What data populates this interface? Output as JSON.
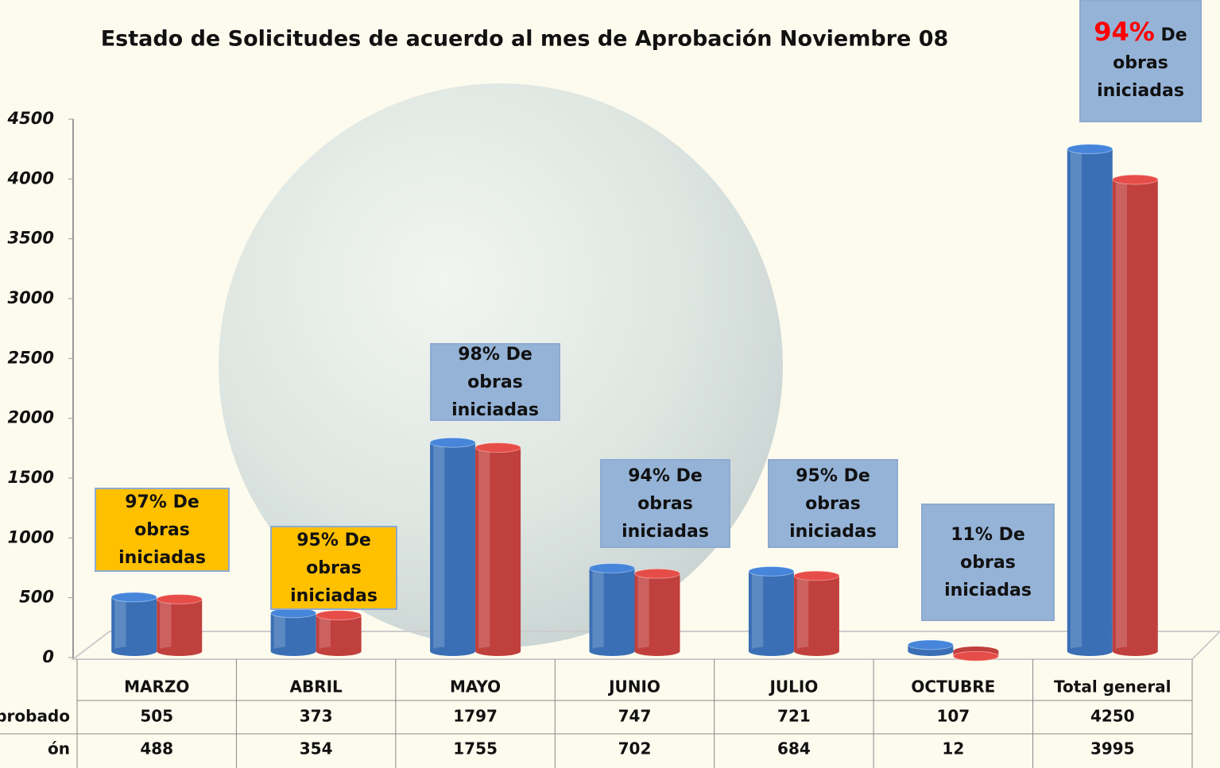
{
  "chart_data": {
    "type": "bar3d",
    "title": "Estado de Solicitudes de acuerdo al mes de Aprobación Noviembre 08",
    "categories": [
      "MARZO",
      "ABRIL",
      "MAYO",
      "JUNIO",
      "JULIO",
      "OCTUBRE",
      "Total general"
    ],
    "series": [
      {
        "name": "probado",
        "color": "#3a6fb5",
        "values": [
          505,
          373,
          1797,
          747,
          721,
          107,
          4250
        ]
      },
      {
        "name": "ón",
        "color": "#c0403d",
        "values": [
          488,
          354,
          1755,
          702,
          684,
          12,
          3995
        ]
      }
    ],
    "ylim": [
      0,
      4500
    ],
    "yticks": [
      0,
      500,
      1000,
      1500,
      2000,
      2500,
      3000,
      3500,
      4000,
      4500
    ],
    "annotations": [
      {
        "text": "97% De obras iniciadas",
        "color": "#ffc000"
      },
      {
        "text": "95% De obras iniciadas",
        "color": "#ffc000"
      },
      {
        "text": "98% De obras iniciadas",
        "color": "#95b3d7"
      },
      {
        "text": "94% De obras iniciadas",
        "color": "#95b3d7"
      },
      {
        "text": "95% De obras iniciadas",
        "color": "#95b3d7"
      },
      {
        "text": "11% De obras iniciadas",
        "color": "#95b3d7"
      },
      {
        "highlight": "94%",
        "highlight_color": "#ff0000",
        "text": "De obras iniciadas",
        "color": "#95b3d7"
      }
    ]
  }
}
